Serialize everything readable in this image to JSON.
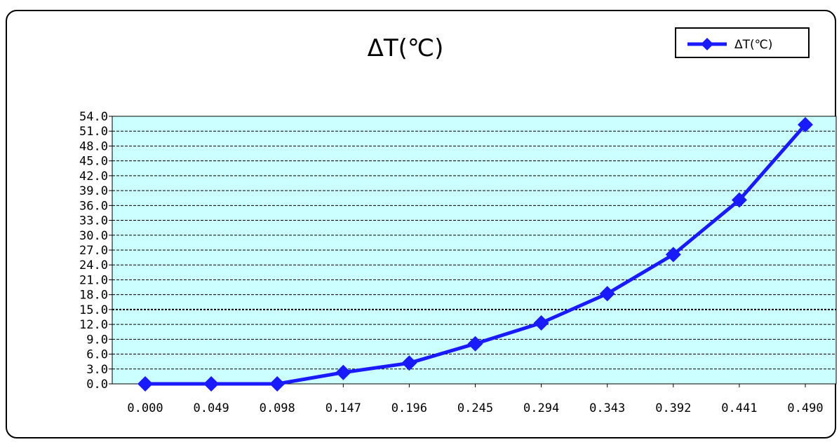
{
  "chart_data": {
    "type": "line",
    "title": "ΔT(℃)",
    "xlabel": "",
    "ylabel": "",
    "categories": [
      "0.000",
      "0.049",
      "0.098",
      "0.147",
      "0.196",
      "0.245",
      "0.294",
      "0.343",
      "0.392",
      "0.441",
      "0.490"
    ],
    "series": [
      {
        "name": "ΔT(℃)",
        "values": [
          0.0,
          0.0,
          0.0,
          2.3,
          4.2,
          8.1,
          12.3,
          18.2,
          26.1,
          37.1,
          52.3
        ]
      }
    ],
    "y_ticks": [
      "0.0",
      "3.0",
      "6.0",
      "9.0",
      "12.0",
      "15.0",
      "18.0",
      "21.0",
      "24.0",
      "27.0",
      "30.0",
      "33.0",
      "36.0",
      "39.0",
      "42.0",
      "45.0",
      "48.0",
      "51.0",
      "54.0"
    ],
    "ylim": [
      0,
      54
    ],
    "grid": true,
    "legend_position": "top-right",
    "colors": {
      "series": "#1a1aff",
      "plot_background": "#ccffff"
    }
  }
}
